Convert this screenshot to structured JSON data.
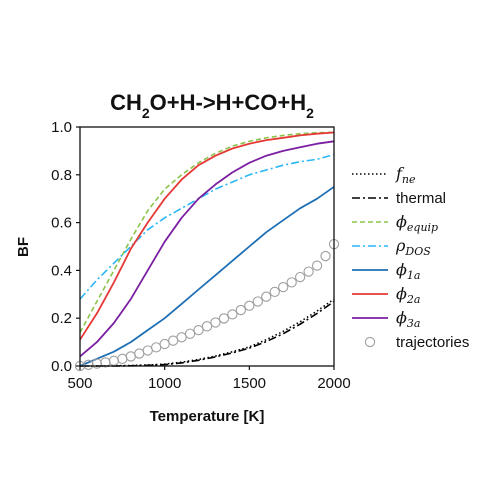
{
  "chart_data": {
    "type": "line",
    "title": {
      "prefix": "CH",
      "sub1": "2",
      "middle": "O+H->H+CO+H",
      "sub2": "2"
    },
    "xlabel": "Temperature [K]",
    "ylabel": "BF",
    "xlim": [
      500,
      2000
    ],
    "ylim": [
      0,
      1
    ],
    "xticks": [
      500,
      1000,
      1500,
      2000
    ],
    "yticks": [
      "0.0",
      "0.2",
      "0.4",
      "0.6",
      "0.8",
      "1.0"
    ],
    "grid": false,
    "legend_position": "right",
    "series": [
      {
        "key": "fne",
        "name_main": "f",
        "name_sub": "ne",
        "math": true,
        "color": "#000000",
        "style": "dotted",
        "x": [
          500,
          600,
          700,
          800,
          900,
          1000,
          1100,
          1200,
          1300,
          1400,
          1500,
          1600,
          1700,
          1800,
          1900,
          2000
        ],
        "y": [
          0.0,
          0.0,
          0.001,
          0.002,
          0.004,
          0.008,
          0.016,
          0.027,
          0.042,
          0.06,
          0.08,
          0.11,
          0.145,
          0.185,
          0.23,
          0.28
        ]
      },
      {
        "key": "thermal",
        "name_main": "thermal",
        "name_sub": "",
        "math": false,
        "color": "#000000",
        "style": "dashdot",
        "x": [
          500,
          600,
          700,
          800,
          900,
          1000,
          1100,
          1200,
          1300,
          1400,
          1500,
          1600,
          1700,
          1800,
          1900,
          2000
        ],
        "y": [
          0.0,
          0.0,
          0.0,
          0.001,
          0.003,
          0.006,
          0.013,
          0.024,
          0.038,
          0.055,
          0.075,
          0.102,
          0.135,
          0.175,
          0.22,
          0.27
        ]
      },
      {
        "key": "phi_equip",
        "name_main": "ϕ",
        "name_sub": "equip",
        "math": true,
        "color": "#8BC34A",
        "style": "dashed",
        "x": [
          500,
          600,
          700,
          800,
          900,
          1000,
          1100,
          1200,
          1300,
          1400,
          1500,
          1600,
          1700,
          1800,
          1900,
          2000
        ],
        "y": [
          0.14,
          0.27,
          0.4,
          0.53,
          0.65,
          0.74,
          0.8,
          0.85,
          0.89,
          0.92,
          0.94,
          0.955,
          0.965,
          0.972,
          0.976,
          0.978
        ]
      },
      {
        "key": "rho_dos",
        "name_main": "ρ",
        "name_sub": "DOS",
        "math": true,
        "color": "#29B6F6",
        "style": "dashdot",
        "x": [
          500,
          600,
          700,
          800,
          900,
          1000,
          1100,
          1200,
          1300,
          1400,
          1500,
          1600,
          1700,
          1800,
          1900,
          2000
        ],
        "y": [
          0.28,
          0.36,
          0.43,
          0.5,
          0.57,
          0.62,
          0.66,
          0.7,
          0.74,
          0.77,
          0.8,
          0.82,
          0.84,
          0.855,
          0.865,
          0.885
        ]
      },
      {
        "key": "phi_1a",
        "name_main": "ϕ",
        "name_sub": "1a",
        "math": true,
        "color": "#1F6FB5",
        "style": "solid",
        "x": [
          500,
          600,
          700,
          800,
          900,
          1000,
          1100,
          1200,
          1300,
          1400,
          1500,
          1600,
          1700,
          1800,
          1900,
          2000
        ],
        "y": [
          0.0,
          0.03,
          0.06,
          0.1,
          0.15,
          0.2,
          0.26,
          0.32,
          0.38,
          0.44,
          0.5,
          0.56,
          0.61,
          0.66,
          0.7,
          0.75
        ]
      },
      {
        "key": "phi_2a",
        "name_main": "ϕ",
        "name_sub": "2a",
        "math": true,
        "color": "#E53935",
        "style": "solid",
        "x": [
          500,
          600,
          700,
          800,
          900,
          1000,
          1100,
          1200,
          1300,
          1400,
          1500,
          1600,
          1700,
          1800,
          1900,
          2000
        ],
        "y": [
          0.11,
          0.22,
          0.35,
          0.49,
          0.6,
          0.7,
          0.78,
          0.84,
          0.88,
          0.91,
          0.93,
          0.945,
          0.955,
          0.965,
          0.972,
          0.977
        ]
      },
      {
        "key": "phi_3a",
        "name_main": "ϕ",
        "name_sub": "3a",
        "math": true,
        "color": "#7B1FA2",
        "style": "solid",
        "x": [
          500,
          600,
          700,
          800,
          900,
          1000,
          1100,
          1200,
          1300,
          1400,
          1500,
          1600,
          1700,
          1800,
          1900,
          2000
        ],
        "y": [
          0.04,
          0.1,
          0.18,
          0.28,
          0.4,
          0.52,
          0.62,
          0.7,
          0.76,
          0.81,
          0.85,
          0.88,
          0.9,
          0.915,
          0.93,
          0.94
        ]
      },
      {
        "key": "trajectories",
        "name_main": "trajectories",
        "name_sub": "",
        "math": false,
        "color": "#9E9E9E",
        "style": "markers",
        "x": [
          500,
          550,
          600,
          650,
          700,
          750,
          800,
          850,
          900,
          950,
          1000,
          1050,
          1100,
          1150,
          1200,
          1250,
          1300,
          1350,
          1400,
          1450,
          1500,
          1550,
          1600,
          1650,
          1700,
          1750,
          1800,
          1850,
          1900,
          1950,
          2000
        ],
        "y": [
          0.0,
          0.005,
          0.01,
          0.015,
          0.022,
          0.03,
          0.04,
          0.052,
          0.065,
          0.078,
          0.092,
          0.106,
          0.12,
          0.135,
          0.15,
          0.166,
          0.182,
          0.199,
          0.216,
          0.234,
          0.252,
          0.27,
          0.29,
          0.31,
          0.33,
          0.35,
          0.372,
          0.395,
          0.42,
          0.46,
          0.51
        ]
      }
    ]
  }
}
